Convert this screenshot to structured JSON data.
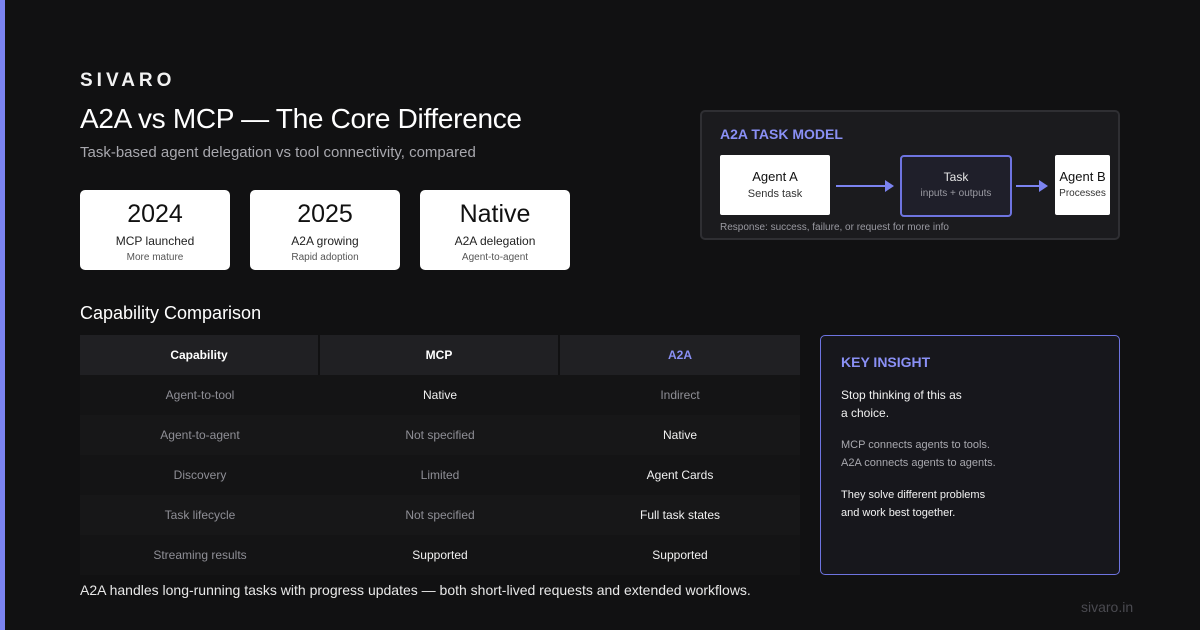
{
  "brand": "SIVARO",
  "title": "A2A vs MCP — The Core Difference",
  "subtitle": "Task-based agent delegation vs tool connectivity, compared",
  "stats": [
    {
      "big": "2024",
      "label": "MCP launched",
      "small": "More mature"
    },
    {
      "big": "2025",
      "label": "A2A growing",
      "small": "Rapid adoption"
    },
    {
      "big": "Native",
      "label": "A2A delegation",
      "small": "Agent-to-agent"
    }
  ],
  "task_model": {
    "title": "A2A TASK MODEL",
    "agent_a": {
      "name": "Agent A",
      "desc": "Sends task"
    },
    "task": {
      "name": "Task",
      "desc": "inputs + outputs"
    },
    "agent_b": {
      "name": "Agent B",
      "desc": "Processes"
    },
    "note": "Response: success, failure, or request for more info"
  },
  "comparison": {
    "heading": "Capability Comparison",
    "headers": [
      "Capability",
      "MCP",
      "A2A"
    ],
    "rows": [
      [
        "Agent-to-tool",
        "Native",
        "Indirect"
      ],
      [
        "Agent-to-agent",
        "Not specified",
        "Native"
      ],
      [
        "Discovery",
        "Limited",
        "Agent Cards"
      ],
      [
        "Task lifecycle",
        "Not specified",
        "Full task states"
      ],
      [
        "Streaming results",
        "Supported",
        "Supported"
      ]
    ]
  },
  "footer_note": "A2A handles long-running tasks with progress updates — both short-lived requests and extended workflows.",
  "insight": {
    "title": "KEY INSIGHT",
    "line1a": "Stop thinking of this as",
    "line1b": "a choice.",
    "line2a": "MCP connects agents to tools.",
    "line2b": "A2A connects agents to agents.",
    "line3a": "They solve different problems",
    "line3b": "and work best together."
  },
  "site": "sivaro.in",
  "colors": {
    "accent": "#7b83f0",
    "background": "#111112"
  }
}
